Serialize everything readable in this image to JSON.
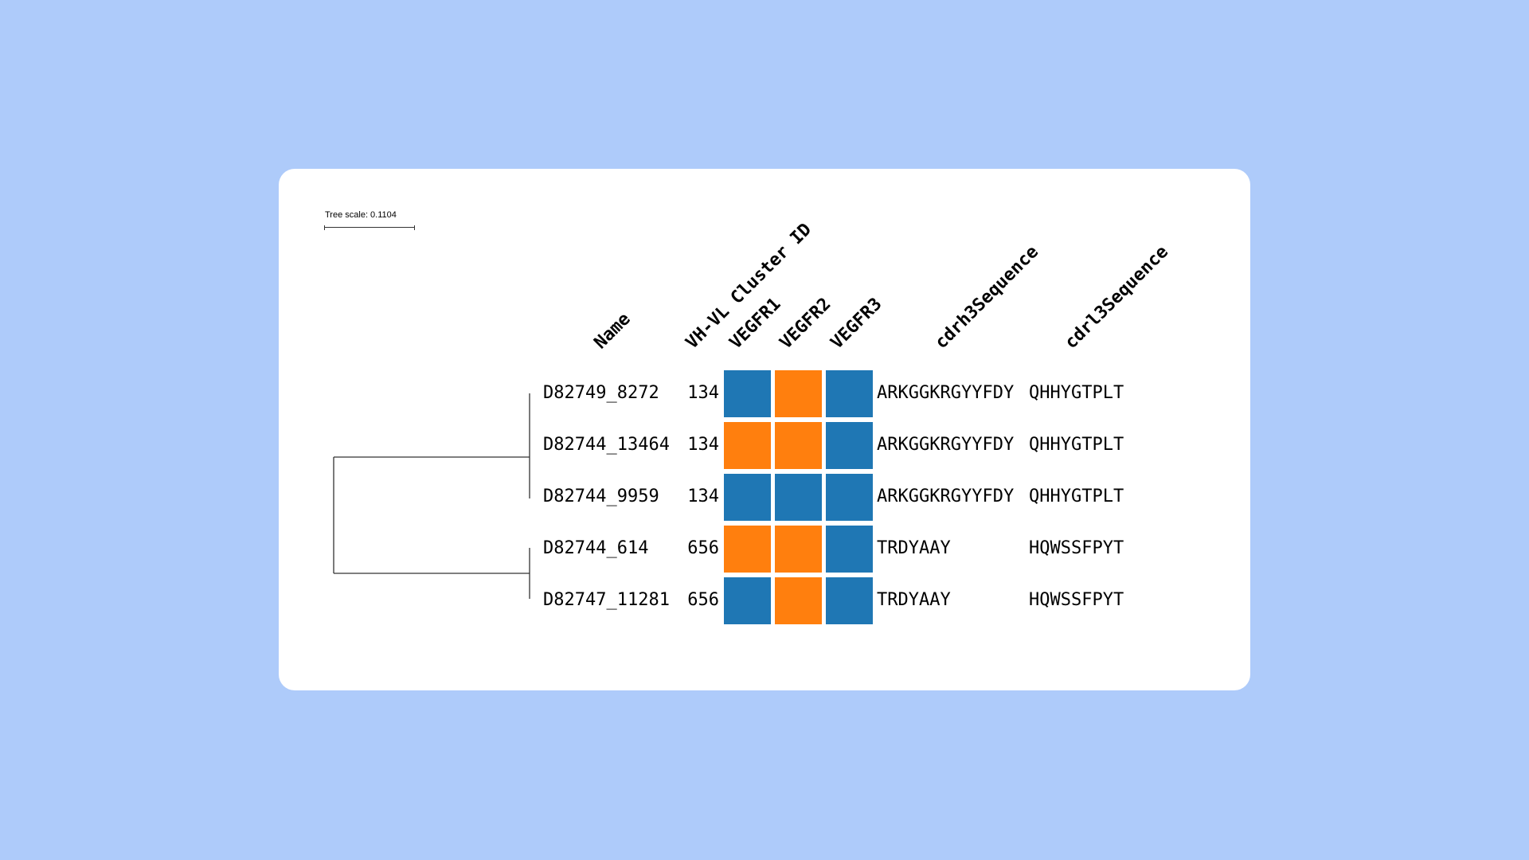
{
  "tree_scale_label": "Tree scale: 0.1104",
  "colors": {
    "blue": "#1f77b4",
    "orange": "#ff7f0e",
    "background": "#aecbfa"
  },
  "headers": [
    "Name",
    "VH-VL Cluster ID",
    "VEGFR1",
    "VEGFR2",
    "VEGFR3",
    "cdrh3Sequence",
    "cdrl3Sequence"
  ],
  "rows": [
    {
      "name": "D82749_8272",
      "cluster": "134",
      "vegfr": [
        "blue",
        "orange",
        "blue"
      ],
      "cdrh3": "ARKGGKRGYYFDY",
      "cdrl3": "QHHYGTPLT"
    },
    {
      "name": "D82744_13464",
      "cluster": "134",
      "vegfr": [
        "orange",
        "orange",
        "blue"
      ],
      "cdrh3": "ARKGGKRGYYFDY",
      "cdrl3": "QHHYGTPLT"
    },
    {
      "name": "D82744_9959",
      "cluster": "134",
      "vegfr": [
        "blue",
        "blue",
        "blue"
      ],
      "cdrh3": "ARKGGKRGYYFDY",
      "cdrl3": "QHHYGTPLT"
    },
    {
      "name": "D82744_614",
      "cluster": "656",
      "vegfr": [
        "orange",
        "orange",
        "blue"
      ],
      "cdrh3": "TRDYAAY",
      "cdrl3": "HQWSSFPYT"
    },
    {
      "name": "D82747_11281",
      "cluster": "656",
      "vegfr": [
        "blue",
        "orange",
        "blue"
      ],
      "cdrh3": "TRDYAAY",
      "cdrl3": "HQWSSFPYT"
    }
  ]
}
